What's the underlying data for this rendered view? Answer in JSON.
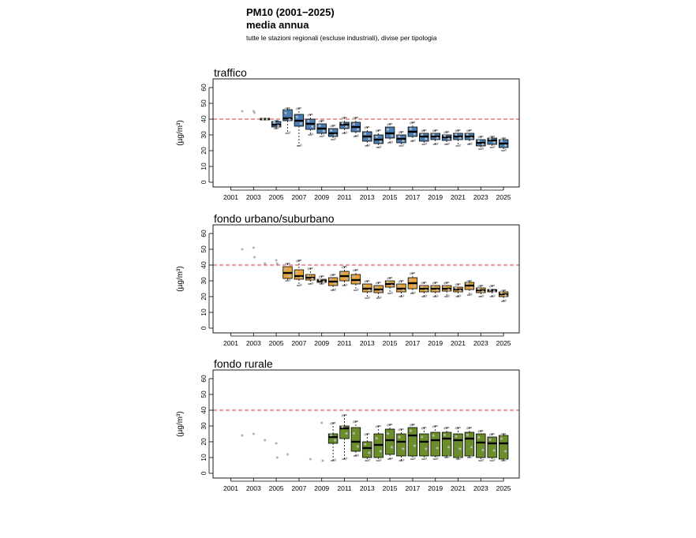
{
  "header": {
    "title": "PM10 (2001−2025)",
    "subtitle": "media annua",
    "note": "tutte le stazioni regionali (escluse industriali), divise per tipologia"
  },
  "chart_data": [
    {
      "type": "boxplot",
      "title": "traffico",
      "ylabel": "(µg/m³)",
      "ylim": [
        0,
        60
      ],
      "y_ticks": [
        0,
        10,
        20,
        30,
        40,
        50,
        60
      ],
      "x_tick_labels": [
        "2001",
        "2003",
        "2005",
        "2007",
        "2009",
        "2011",
        "2013",
        "2015",
        "2017",
        "2019",
        "2021",
        "2023",
        "2025"
      ],
      "limit_line": 40,
      "color": "#4a7fb5",
      "years": [
        2002,
        2003,
        2004,
        2005,
        2006,
        2007,
        2008,
        2009,
        2010,
        2011,
        2012,
        2013,
        2014,
        2015,
        2016,
        2017,
        2018,
        2019,
        2020,
        2021,
        2022,
        2023,
        2024,
        2025
      ],
      "boxes": [
        null,
        null,
        {
          "q1": 39.5,
          "med": 40,
          "q3": 40.5,
          "lo": 39.5,
          "hi": 40.5
        },
        {
          "q1": 35,
          "med": 36.5,
          "q3": 38.5,
          "lo": 34,
          "hi": 39
        },
        {
          "q1": 39,
          "med": 40.5,
          "q3": 46,
          "lo": 31,
          "hi": 47
        },
        {
          "q1": 35.5,
          "med": 39,
          "q3": 43,
          "lo": 23,
          "hi": 47
        },
        {
          "q1": 33.5,
          "med": 37,
          "q3": 40,
          "lo": 30,
          "hi": 43
        },
        {
          "q1": 31,
          "med": 34,
          "q3": 37,
          "lo": 29,
          "hi": 39
        },
        {
          "q1": 29,
          "med": 31,
          "q3": 34,
          "lo": 27,
          "hi": 36
        },
        {
          "q1": 34,
          "med": 36.5,
          "q3": 38,
          "lo": 31,
          "hi": 41
        },
        {
          "q1": 32,
          "med": 35,
          "q3": 38,
          "lo": 29,
          "hi": 41
        },
        {
          "q1": 26,
          "med": 29,
          "q3": 32,
          "lo": 23,
          "hi": 35
        },
        {
          "q1": 24.5,
          "med": 27,
          "q3": 30,
          "lo": 22,
          "hi": 33
        },
        {
          "q1": 28,
          "med": 31,
          "q3": 35,
          "lo": 25,
          "hi": 37
        },
        {
          "q1": 25,
          "med": 27.5,
          "q3": 30,
          "lo": 23,
          "hi": 32
        },
        {
          "q1": 29,
          "med": 32,
          "q3": 35,
          "lo": 26,
          "hi": 38
        },
        {
          "q1": 26,
          "med": 29,
          "q3": 31,
          "lo": 24,
          "hi": 33
        },
        {
          "q1": 27,
          "med": 29,
          "q3": 31,
          "lo": 24,
          "hi": 33
        },
        {
          "q1": 26.5,
          "med": 28.5,
          "q3": 30,
          "lo": 24,
          "hi": 32
        },
        {
          "q1": 27,
          "med": 29,
          "q3": 31,
          "lo": 23,
          "hi": 33
        },
        {
          "q1": 27,
          "med": 29,
          "q3": 31,
          "lo": 24,
          "hi": 33
        },
        {
          "q1": 23,
          "med": 25,
          "q3": 27,
          "lo": 21,
          "hi": 29
        },
        {
          "q1": 24,
          "med": 26.5,
          "q3": 28,
          "lo": 22,
          "hi": 29
        },
        {
          "q1": 22,
          "med": 24.5,
          "q3": 27,
          "lo": 20,
          "hi": 28
        }
      ],
      "stations": [
        [
          45
        ],
        [
          45,
          44
        ],
        [],
        [],
        [],
        [],
        [],
        [],
        [],
        [],
        [],
        [],
        [],
        [],
        [],
        [],
        [],
        [],
        [],
        [],
        [],
        [],
        [],
        []
      ]
    },
    {
      "type": "boxplot",
      "title": "fondo urbano/suburbano",
      "ylabel": "(µg/m³)",
      "ylim": [
        0,
        60
      ],
      "y_ticks": [
        0,
        10,
        20,
        30,
        40,
        50,
        60
      ],
      "x_tick_labels": [
        "2001",
        "2003",
        "2005",
        "2007",
        "2009",
        "2011",
        "2013",
        "2015",
        "2017",
        "2019",
        "2021",
        "2023",
        "2025"
      ],
      "limit_line": 40,
      "color": "#e8a43a",
      "years": [
        2002,
        2003,
        2004,
        2005,
        2006,
        2007,
        2008,
        2009,
        2010,
        2011,
        2012,
        2013,
        2014,
        2015,
        2016,
        2017,
        2018,
        2019,
        2020,
        2021,
        2022,
        2023,
        2024,
        2025
      ],
      "boxes": [
        null,
        null,
        null,
        null,
        {
          "q1": 31.5,
          "med": 35,
          "q3": 39,
          "lo": 30,
          "hi": 41
        },
        {
          "q1": 31,
          "med": 33,
          "q3": 37,
          "lo": 27,
          "hi": 43
        },
        {
          "q1": 30.5,
          "med": 32,
          "q3": 34,
          "lo": 28,
          "hi": 38
        },
        {
          "q1": 29,
          "med": 30,
          "q3": 31,
          "lo": 28,
          "hi": 33
        },
        {
          "q1": 27,
          "med": 29.5,
          "q3": 32,
          "lo": 24,
          "hi": 34
        },
        {
          "q1": 30,
          "med": 33,
          "q3": 36,
          "lo": 27,
          "hi": 39
        },
        {
          "q1": 28,
          "med": 30.5,
          "q3": 34,
          "lo": 24,
          "hi": 37
        },
        {
          "q1": 23,
          "med": 25,
          "q3": 28,
          "lo": 19,
          "hi": 30
        },
        {
          "q1": 22.5,
          "med": 24.5,
          "q3": 27,
          "lo": 19,
          "hi": 29
        },
        {
          "q1": 26,
          "med": 28,
          "q3": 30,
          "lo": 22,
          "hi": 32
        },
        {
          "q1": 23,
          "med": 25,
          "q3": 28,
          "lo": 20,
          "hi": 30
        },
        {
          "q1": 25,
          "med": 28.5,
          "q3": 32,
          "lo": 22,
          "hi": 35
        },
        {
          "q1": 23,
          "med": 25,
          "q3": 27,
          "lo": 20,
          "hi": 29
        },
        {
          "q1": 23,
          "med": 25,
          "q3": 27,
          "lo": 20,
          "hi": 29
        },
        {
          "q1": 23.5,
          "med": 25,
          "q3": 27,
          "lo": 20,
          "hi": 29
        },
        {
          "q1": 23,
          "med": 24.5,
          "q3": 26,
          "lo": 20,
          "hi": 28
        },
        {
          "q1": 24.5,
          "med": 27,
          "q3": 29,
          "lo": 21,
          "hi": 30
        },
        {
          "q1": 22.5,
          "med": 24,
          "q3": 25.5,
          "lo": 20,
          "hi": 27
        },
        {
          "q1": 23,
          "med": 24,
          "q3": 24.5,
          "lo": 20,
          "hi": 27
        },
        {
          "q1": 20,
          "med": 21.5,
          "q3": 23,
          "lo": 17,
          "hi": 24
        }
      ],
      "stations": [
        [
          50
        ],
        [
          51,
          45
        ],
        [
          41
        ],
        [
          43,
          41
        ],
        [],
        [],
        [],
        [],
        [],
        [],
        [],
        [],
        [],
        [],
        [],
        [],
        [],
        [],
        [],
        [],
        [],
        [],
        [],
        []
      ]
    },
    {
      "type": "boxplot",
      "title": "fondo rurale",
      "ylabel": "(µg/m³)",
      "ylim": [
        0,
        60
      ],
      "y_ticks": [
        0,
        10,
        20,
        30,
        40,
        50,
        60
      ],
      "x_tick_labels": [
        "2001",
        "2003",
        "2005",
        "2007",
        "2009",
        "2011",
        "2013",
        "2015",
        "2017",
        "2019",
        "2021",
        "2023",
        "2025"
      ],
      "limit_line": 40,
      "color": "#6b8e2b",
      "years": [
        2002,
        2003,
        2004,
        2005,
        2006,
        2007,
        2008,
        2009,
        2010,
        2011,
        2012,
        2013,
        2014,
        2015,
        2016,
        2017,
        2018,
        2019,
        2020,
        2021,
        2022,
        2023,
        2024,
        2025
      ],
      "boxes": [
        null,
        null,
        null,
        null,
        null,
        null,
        null,
        null,
        {
          "q1": 19,
          "med": 23,
          "q3": 25,
          "lo": 8,
          "hi": 32
        },
        {
          "q1": 22,
          "med": 28.5,
          "q3": 30,
          "lo": 9,
          "hi": 37
        },
        {
          "q1": 14,
          "med": 20,
          "q3": 29,
          "lo": 11,
          "hi": 33
        },
        {
          "q1": 10,
          "med": 16,
          "q3": 20,
          "lo": 8,
          "hi": 25
        },
        {
          "q1": 10,
          "med": 18,
          "q3": 25,
          "lo": 8,
          "hi": 30
        },
        {
          "q1": 12,
          "med": 21,
          "q3": 28,
          "lo": 9,
          "hi": 31
        },
        {
          "q1": 11,
          "med": 20,
          "q3": 25,
          "lo": 8,
          "hi": 28
        },
        {
          "q1": 11,
          "med": 24,
          "q3": 29,
          "lo": 9,
          "hi": 31
        },
        {
          "q1": 11,
          "med": 20,
          "q3": 25,
          "lo": 9,
          "hi": 29
        },
        {
          "q1": 11,
          "med": 21,
          "q3": 26,
          "lo": 9,
          "hi": 30
        },
        {
          "q1": 11,
          "med": 22,
          "q3": 26,
          "lo": 10,
          "hi": 29
        },
        {
          "q1": 10,
          "med": 21,
          "q3": 25,
          "lo": 9,
          "hi": 29
        },
        {
          "q1": 11,
          "med": 22,
          "q3": 26,
          "lo": 10,
          "hi": 29
        },
        {
          "q1": 10,
          "med": 19.5,
          "q3": 25,
          "lo": 8,
          "hi": 27
        },
        {
          "q1": 10,
          "med": 19,
          "q3": 23,
          "lo": 8,
          "hi": 25
        },
        {
          "q1": 9,
          "med": 19,
          "q3": 24,
          "lo": 8,
          "hi": 25
        }
      ],
      "stations": [
        [
          24
        ],
        [
          25
        ],
        [
          21
        ],
        [
          19,
          10
        ],
        [
          12
        ],
        [],
        [
          9
        ],
        [
          32,
          8
        ],
        [],
        [],
        [],
        [],
        [],
        [],
        [],
        [],
        [],
        [],
        [],
        [],
        [],
        [],
        [],
        []
      ]
    }
  ]
}
